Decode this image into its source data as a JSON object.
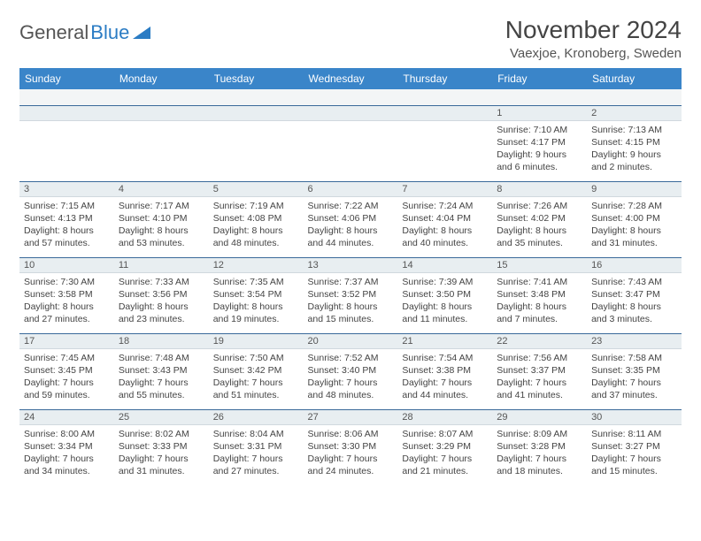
{
  "logo": {
    "part1": "General",
    "part2": "Blue"
  },
  "title": "November 2024",
  "location": "Vaexjoe, Kronoberg, Sweden",
  "theme": {
    "header_bg": "#3a85c9",
    "header_fg": "#ffffff",
    "daynum_bg": "#e8eef1",
    "cell_border": "#3a6a9a",
    "logo_accent": "#2b7cc4"
  },
  "weekdays": [
    "Sunday",
    "Monday",
    "Tuesday",
    "Wednesday",
    "Thursday",
    "Friday",
    "Saturday"
  ],
  "weeks": [
    [
      null,
      null,
      null,
      null,
      null,
      {
        "d": "1",
        "sr": "7:10 AM",
        "ss": "4:17 PM",
        "dl": "9 hours and 6 minutes."
      },
      {
        "d": "2",
        "sr": "7:13 AM",
        "ss": "4:15 PM",
        "dl": "9 hours and 2 minutes."
      }
    ],
    [
      {
        "d": "3",
        "sr": "7:15 AM",
        "ss": "4:13 PM",
        "dl": "8 hours and 57 minutes."
      },
      {
        "d": "4",
        "sr": "7:17 AM",
        "ss": "4:10 PM",
        "dl": "8 hours and 53 minutes."
      },
      {
        "d": "5",
        "sr": "7:19 AM",
        "ss": "4:08 PM",
        "dl": "8 hours and 48 minutes."
      },
      {
        "d": "6",
        "sr": "7:22 AM",
        "ss": "4:06 PM",
        "dl": "8 hours and 44 minutes."
      },
      {
        "d": "7",
        "sr": "7:24 AM",
        "ss": "4:04 PM",
        "dl": "8 hours and 40 minutes."
      },
      {
        "d": "8",
        "sr": "7:26 AM",
        "ss": "4:02 PM",
        "dl": "8 hours and 35 minutes."
      },
      {
        "d": "9",
        "sr": "7:28 AM",
        "ss": "4:00 PM",
        "dl": "8 hours and 31 minutes."
      }
    ],
    [
      {
        "d": "10",
        "sr": "7:30 AM",
        "ss": "3:58 PM",
        "dl": "8 hours and 27 minutes."
      },
      {
        "d": "11",
        "sr": "7:33 AM",
        "ss": "3:56 PM",
        "dl": "8 hours and 23 minutes."
      },
      {
        "d": "12",
        "sr": "7:35 AM",
        "ss": "3:54 PM",
        "dl": "8 hours and 19 minutes."
      },
      {
        "d": "13",
        "sr": "7:37 AM",
        "ss": "3:52 PM",
        "dl": "8 hours and 15 minutes."
      },
      {
        "d": "14",
        "sr": "7:39 AM",
        "ss": "3:50 PM",
        "dl": "8 hours and 11 minutes."
      },
      {
        "d": "15",
        "sr": "7:41 AM",
        "ss": "3:48 PM",
        "dl": "8 hours and 7 minutes."
      },
      {
        "d": "16",
        "sr": "7:43 AM",
        "ss": "3:47 PM",
        "dl": "8 hours and 3 minutes."
      }
    ],
    [
      {
        "d": "17",
        "sr": "7:45 AM",
        "ss": "3:45 PM",
        "dl": "7 hours and 59 minutes."
      },
      {
        "d": "18",
        "sr": "7:48 AM",
        "ss": "3:43 PM",
        "dl": "7 hours and 55 minutes."
      },
      {
        "d": "19",
        "sr": "7:50 AM",
        "ss": "3:42 PM",
        "dl": "7 hours and 51 minutes."
      },
      {
        "d": "20",
        "sr": "7:52 AM",
        "ss": "3:40 PM",
        "dl": "7 hours and 48 minutes."
      },
      {
        "d": "21",
        "sr": "7:54 AM",
        "ss": "3:38 PM",
        "dl": "7 hours and 44 minutes."
      },
      {
        "d": "22",
        "sr": "7:56 AM",
        "ss": "3:37 PM",
        "dl": "7 hours and 41 minutes."
      },
      {
        "d": "23",
        "sr": "7:58 AM",
        "ss": "3:35 PM",
        "dl": "7 hours and 37 minutes."
      }
    ],
    [
      {
        "d": "24",
        "sr": "8:00 AM",
        "ss": "3:34 PM",
        "dl": "7 hours and 34 minutes."
      },
      {
        "d": "25",
        "sr": "8:02 AM",
        "ss": "3:33 PM",
        "dl": "7 hours and 31 minutes."
      },
      {
        "d": "26",
        "sr": "8:04 AM",
        "ss": "3:31 PM",
        "dl": "7 hours and 27 minutes."
      },
      {
        "d": "27",
        "sr": "8:06 AM",
        "ss": "3:30 PM",
        "dl": "7 hours and 24 minutes."
      },
      {
        "d": "28",
        "sr": "8:07 AM",
        "ss": "3:29 PM",
        "dl": "7 hours and 21 minutes."
      },
      {
        "d": "29",
        "sr": "8:09 AM",
        "ss": "3:28 PM",
        "dl": "7 hours and 18 minutes."
      },
      {
        "d": "30",
        "sr": "8:11 AM",
        "ss": "3:27 PM",
        "dl": "7 hours and 15 minutes."
      }
    ]
  ],
  "labels": {
    "sunrise": "Sunrise:",
    "sunset": "Sunset:",
    "daylight": "Daylight:"
  }
}
